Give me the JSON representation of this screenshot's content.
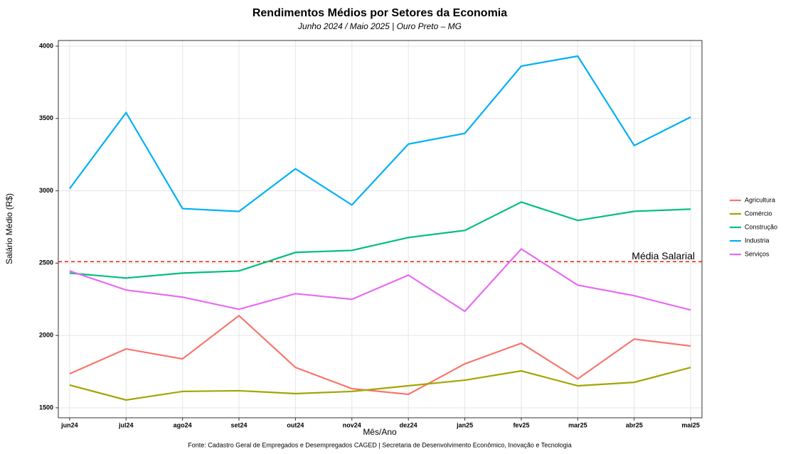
{
  "chart_data": {
    "type": "line",
    "title": "Rendimentos Médios por Setores da Economia",
    "subtitle": "Junho 2024 / Maio 2025 | Ouro Preto – MG",
    "x_label": "Mês/Ano",
    "y_label": "Salário Médio (R$)",
    "caption": "Fonte: Cadastro Geral de Empregados e Desempregados CAGED | Secretaria de Desenvolvimento Econômico, Inovação e Tecnologia",
    "categories": [
      "jun24",
      "jul24",
      "ago24",
      "set24",
      "out24",
      "nov24",
      "dez24",
      "jan25",
      "fev25",
      "mar25",
      "abr25",
      "mai25"
    ],
    "series": [
      {
        "name": "Agricultura",
        "color": "#F8766D",
        "values": [
          1735,
          1907,
          1838,
          2137,
          1779,
          1632,
          1593,
          1804,
          1946,
          1700,
          1975,
          1927
        ]
      },
      {
        "name": "Comércio",
        "color": "#A3A500",
        "values": [
          1657,
          1554,
          1613,
          1618,
          1598,
          1613,
          1652,
          1691,
          1755,
          1652,
          1676,
          1779
        ]
      },
      {
        "name": "Construção",
        "color": "#00BF7D",
        "values": [
          2431,
          2397,
          2431,
          2446,
          2574,
          2588,
          2677,
          2726,
          2922,
          2795,
          2858,
          2873
        ]
      },
      {
        "name": "Industria",
        "color": "#00B0F6",
        "values": [
          3015,
          3540,
          2877,
          2857,
          3152,
          2902,
          3323,
          3397,
          3862,
          3931,
          3313,
          3510
        ]
      },
      {
        "name": "Serviços",
        "color": "#E76BF3",
        "values": [
          2446,
          2314,
          2265,
          2181,
          2289,
          2250,
          2417,
          2167,
          2598,
          2348,
          2275,
          2176
        ]
      }
    ],
    "reference_line": {
      "value": 2510,
      "label": "Média Salarial",
      "color": "#FF0000"
    },
    "ylim": [
      1431,
      4039
    ],
    "yticks": [
      1500,
      2000,
      2500,
      3000,
      3500,
      4000
    ],
    "grid": true,
    "legend": "right"
  }
}
